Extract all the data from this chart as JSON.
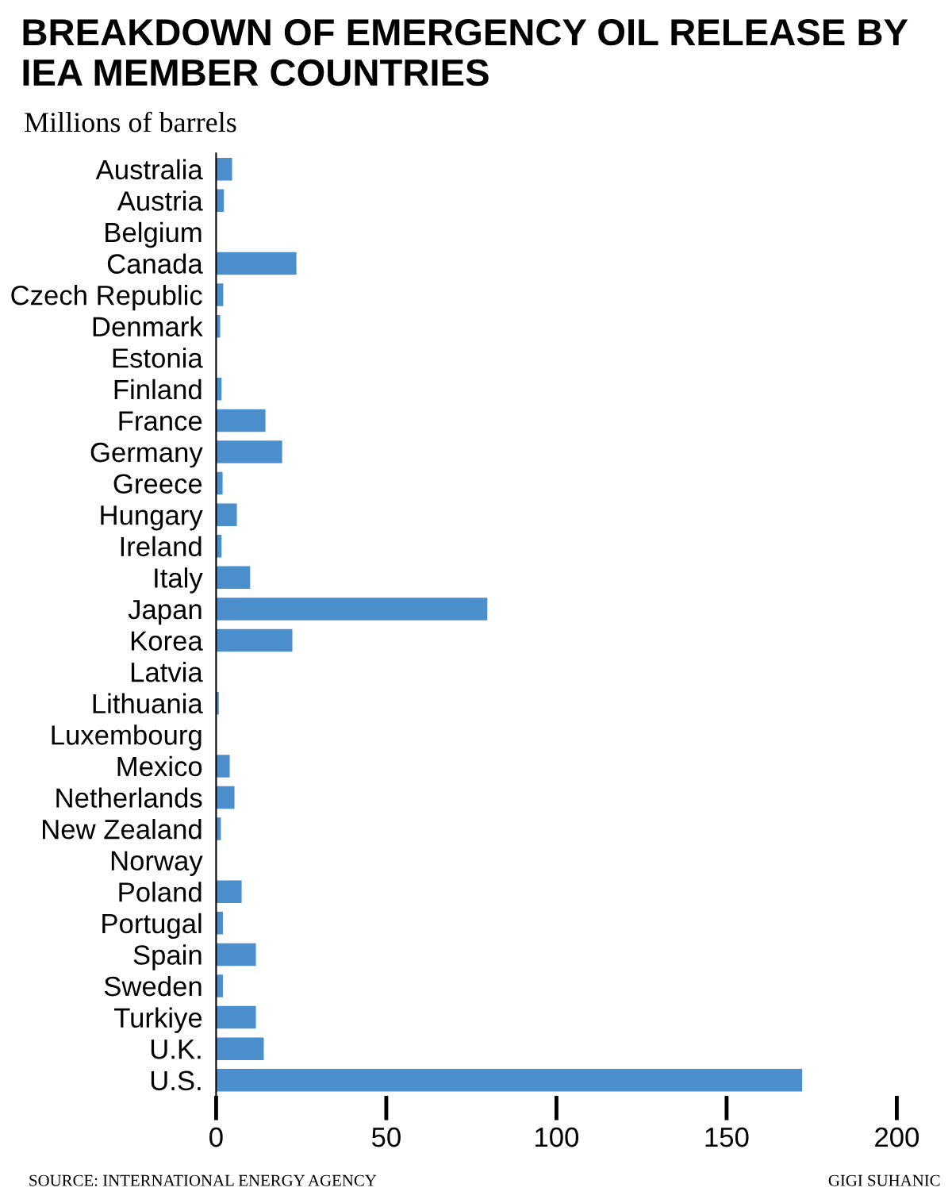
{
  "chart_data": {
    "type": "bar",
    "orientation": "horizontal",
    "title": "BREAKDOWN OF EMERGENCY OIL RELEASE BY IEA MEMBER COUNTRIES",
    "subtitle": "Millions of barrels",
    "categories": [
      "Australia",
      "Austria",
      "Belgium",
      "Canada",
      "Czech Republic",
      "Denmark",
      "Estonia",
      "Finland",
      "France",
      "Germany",
      "Greece",
      "Hungary",
      "Ireland",
      "Italy",
      "Japan",
      "Korea",
      "Latvia",
      "Lithuania",
      "Luxembourg",
      "Mexico",
      "Netherlands",
      "New Zealand",
      "Norway",
      "Poland",
      "Portugal",
      "Spain",
      "Sweden",
      "Turkiye",
      "U.K.",
      "U.S."
    ],
    "values": [
      4.7,
      2.3,
      0,
      23.6,
      2.1,
      1.2,
      0,
      1.6,
      14.5,
      19.4,
      1.9,
      6.1,
      1.6,
      10.0,
      79.7,
      22.4,
      null,
      0.8,
      0,
      4.0,
      5.4,
      1.4,
      null,
      7.5,
      2.0,
      11.7,
      2.0,
      11.7,
      14.0,
      172.2
    ],
    "color": "#4a8fcb",
    "xlim": [
      0,
      200
    ],
    "xticks": [
      0,
      50,
      100,
      150,
      200
    ],
    "grid": false,
    "legend": false,
    "annotations": [
      "SOURCE: INTERNATIONAL ENERGY AGENCY",
      "GIGI SUHANIC"
    ]
  }
}
